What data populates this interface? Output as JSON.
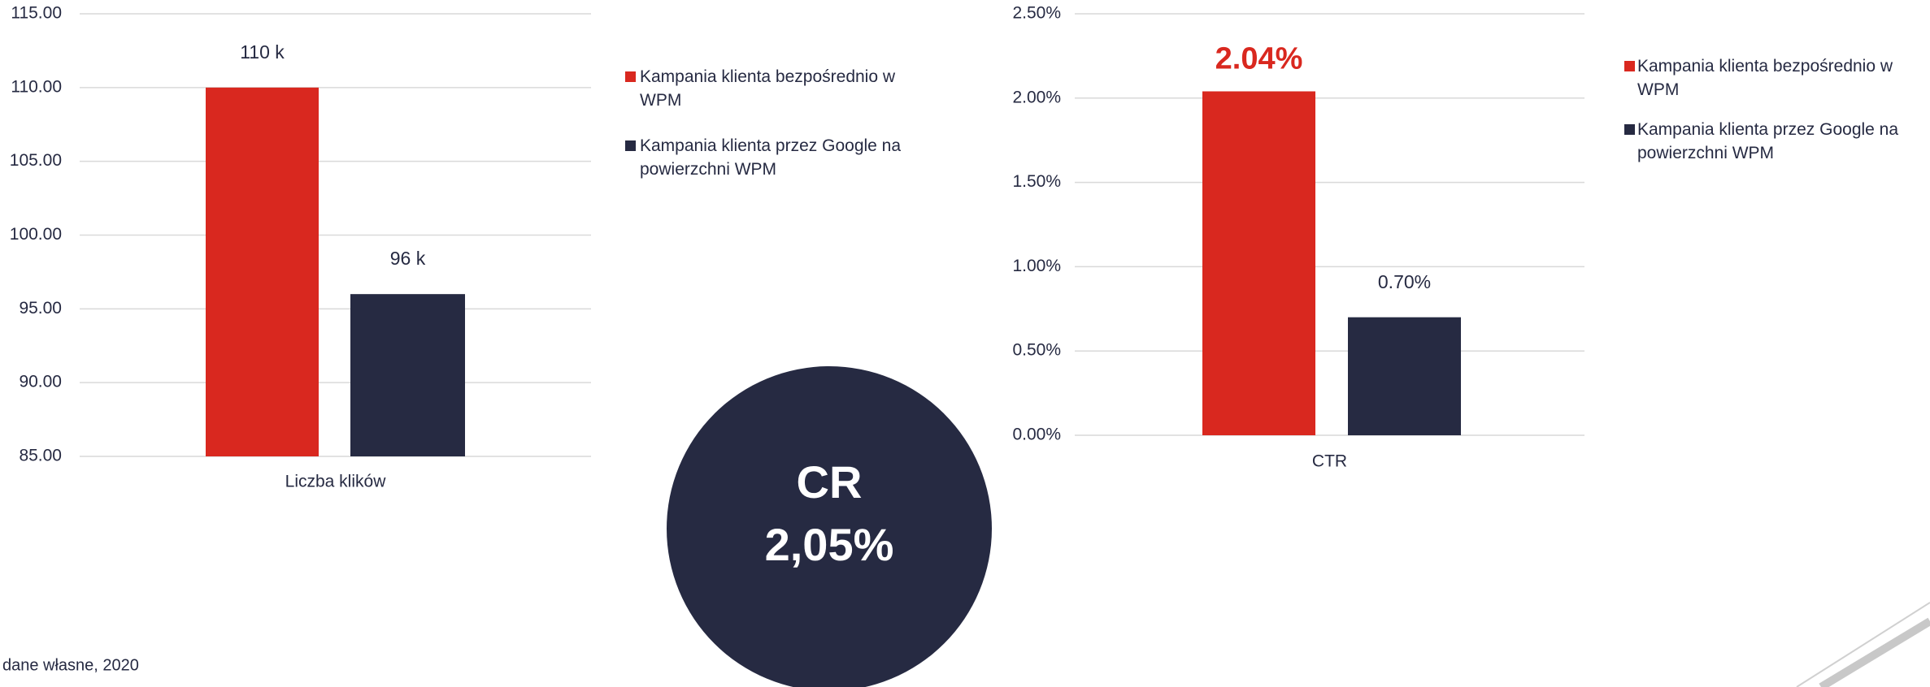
{
  "chart_data": [
    {
      "type": "bar",
      "categories": [
        "Liczba klików"
      ],
      "series": [
        {
          "name": "Kampania klienta bezpośrednio w WPM",
          "color": "#d9281f",
          "values": [
            110
          ],
          "value_labels": [
            "110 k"
          ]
        },
        {
          "name": "Kampania klienta przez Google na powierzchni WPM",
          "color": "#262a42",
          "values": [
            96
          ],
          "value_labels": [
            "96 k"
          ]
        }
      ],
      "ylim": [
        85,
        115
      ],
      "yticks": [
        {
          "value": 85,
          "label": "85.00"
        },
        {
          "value": 90,
          "label": "90.00"
        },
        {
          "value": 95,
          "label": "95.00"
        },
        {
          "value": 100,
          "label": "100.00"
        },
        {
          "value": 105,
          "label": "105.00"
        },
        {
          "value": 110,
          "label": "110.00"
        },
        {
          "value": 115,
          "label": "115.00"
        }
      ],
      "grid": true,
      "legend": "right"
    },
    {
      "type": "bar",
      "categories": [
        "CTR"
      ],
      "series": [
        {
          "name": "Kampania klienta bezpośrednio w WPM",
          "color": "#d9281f",
          "values": [
            2.04
          ],
          "value_labels": [
            "2.04%"
          ]
        },
        {
          "name": "Kampania klienta przez Google na powierzchni WPM",
          "color": "#262a42",
          "values": [
            0.7
          ],
          "value_labels": [
            "0.70%"
          ]
        }
      ],
      "ylim": [
        0,
        2.5
      ],
      "yticks": [
        {
          "value": 0,
          "label": "0.00%"
        },
        {
          "value": 0.5,
          "label": "0.50%"
        },
        {
          "value": 1,
          "label": "1.00%"
        },
        {
          "value": 1.5,
          "label": "1.50%"
        },
        {
          "value": 2,
          "label": "2.00%"
        },
        {
          "value": 2.5,
          "label": "2.50%"
        }
      ],
      "grid": true,
      "legend": "right"
    }
  ],
  "badge": {
    "label": "CR",
    "value": "2,05%"
  },
  "footer": "dane własne, 2020"
}
